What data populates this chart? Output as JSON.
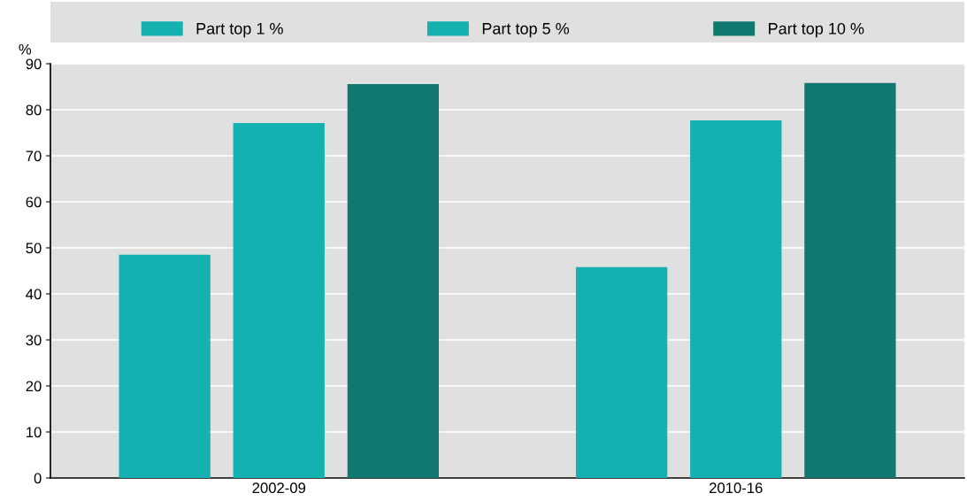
{
  "chart_data": {
    "type": "bar",
    "ylabel": "%",
    "categories": [
      "2002-09",
      "2010-16"
    ],
    "series": [
      {
        "name": "Part top 1 %",
        "color": "#14b1b0",
        "values": [
          48.5,
          45.8
        ]
      },
      {
        "name": "Part top 5 %",
        "color": "#14b1b0",
        "values": [
          77.1,
          77.7
        ]
      },
      {
        "name": "Part top 10 %",
        "color": "#10786e",
        "values": [
          85.6,
          85.8
        ]
      }
    ],
    "ylim": [
      0,
      90
    ],
    "yticks": [
      0,
      10,
      20,
      30,
      40,
      50,
      60,
      70,
      80,
      90
    ],
    "grid": "y",
    "legend": "top"
  }
}
